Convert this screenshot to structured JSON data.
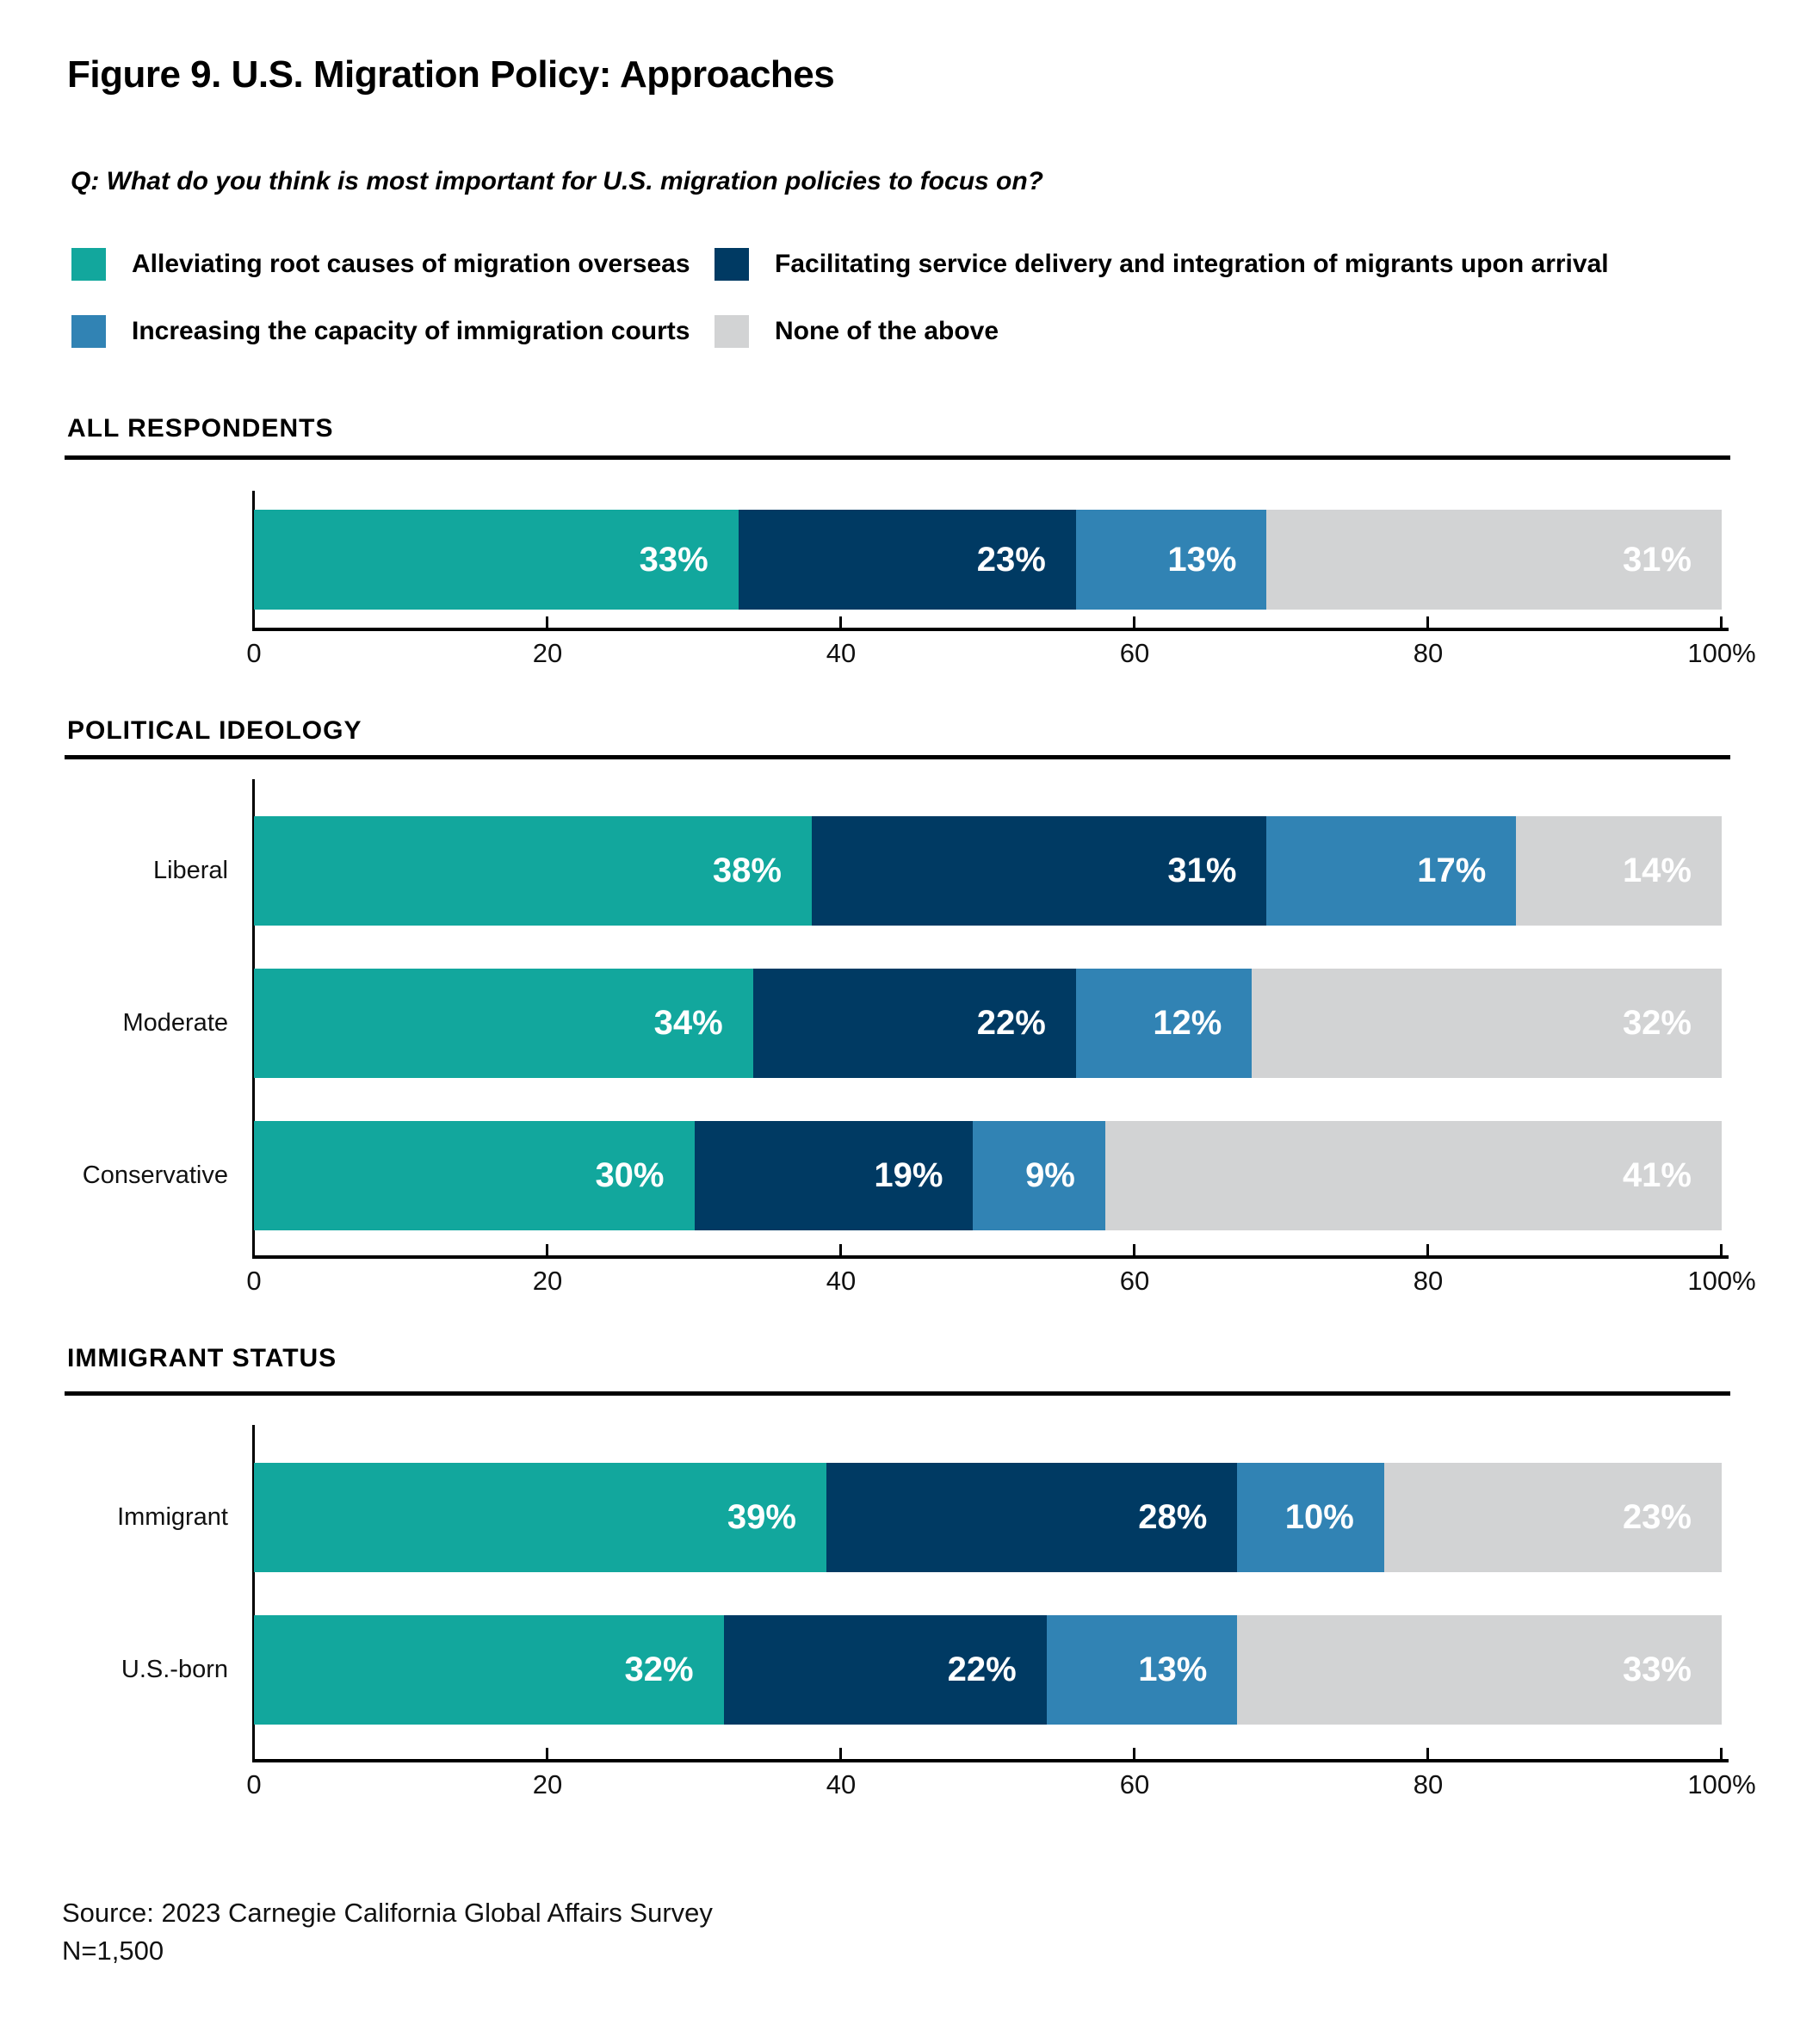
{
  "page": {
    "title": "Figure 9. U.S. Migration Policy: Approaches",
    "question": "Q: What do you think is most important for U.S. migration policies to focus on?",
    "source": "Source: 2023 Carnegie California Global Affairs Survey",
    "sample_size": "N=1,500"
  },
  "colors": {
    "teal": "#12A79D",
    "navy": "#003A63",
    "blue": "#3183B4",
    "gray": "#D2D3D4",
    "axis": "#000000",
    "value_label": "#FFFFFF"
  },
  "chart_data": {
    "type": "bar",
    "stacked": true,
    "orientation": "horizontal",
    "unit": "percent",
    "axis_range": [
      0,
      100
    ],
    "axis_ticks": [
      "0",
      "20",
      "40",
      "60",
      "80",
      "100%"
    ],
    "grid": false,
    "legend_position": "top",
    "legend": [
      {
        "label": "Alleviating root causes of migration overseas",
        "color": "#12A79D"
      },
      {
        "label": "Facilitating service delivery and integration of migrants upon arrival",
        "color": "#003A63"
      },
      {
        "label": "Increasing the capacity of immigration courts",
        "color": "#3183B4"
      },
      {
        "label": "None of the above",
        "color": "#D2D3D4"
      }
    ],
    "sections": [
      {
        "heading": "ALL RESPONDENTS",
        "rows": [
          {
            "label": "",
            "values": [
              33,
              23,
              13,
              31
            ],
            "value_labels": [
              "33%",
              "23%",
              "13%",
              "31%"
            ]
          }
        ]
      },
      {
        "heading": "POLITICAL IDEOLOGY",
        "rows": [
          {
            "label": "Liberal",
            "values": [
              38,
              31,
              17,
              14
            ],
            "value_labels": [
              "38%",
              "31%",
              "17%",
              "14%"
            ]
          },
          {
            "label": "Moderate",
            "values": [
              34,
              22,
              12,
              32
            ],
            "value_labels": [
              "34%",
              "22%",
              "12%",
              "32%"
            ]
          },
          {
            "label": "Conservative",
            "values": [
              30,
              19,
              9,
              41
            ],
            "value_labels": [
              "30%",
              "19%",
              "9%",
              "41%"
            ]
          }
        ]
      },
      {
        "heading": "IMMIGRANT STATUS",
        "rows": [
          {
            "label": "Immigrant",
            "values": [
              39,
              28,
              10,
              23
            ],
            "value_labels": [
              "39%",
              "28%",
              "10%",
              "23%"
            ]
          },
          {
            "label": "U.S.-born",
            "values": [
              32,
              22,
              13,
              33
            ],
            "value_labels": [
              "32%",
              "22%",
              "13%",
              "33%"
            ]
          }
        ]
      }
    ]
  }
}
